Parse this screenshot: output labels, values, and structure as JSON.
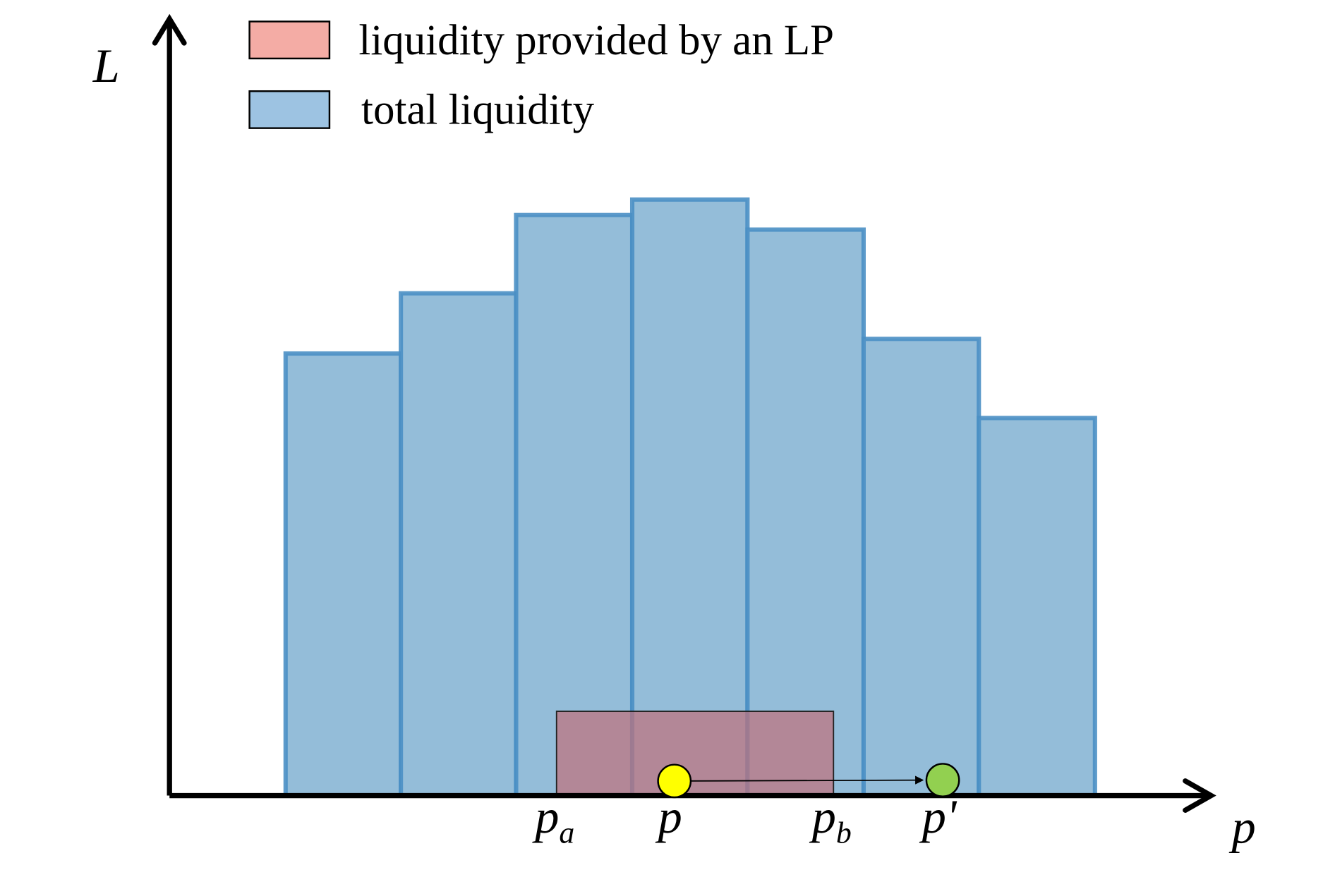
{
  "legend": {
    "items": [
      {
        "label": "liquidity provided by an LP"
      },
      {
        "label": "total liquidity"
      }
    ]
  },
  "axes": {
    "y_label": "L",
    "x_label": "p"
  },
  "markers": [
    {
      "base": "p",
      "sub": "a"
    },
    {
      "base": "p"
    },
    {
      "base": "p",
      "sub": "b"
    },
    {
      "base": "p'"
    }
  ]
}
